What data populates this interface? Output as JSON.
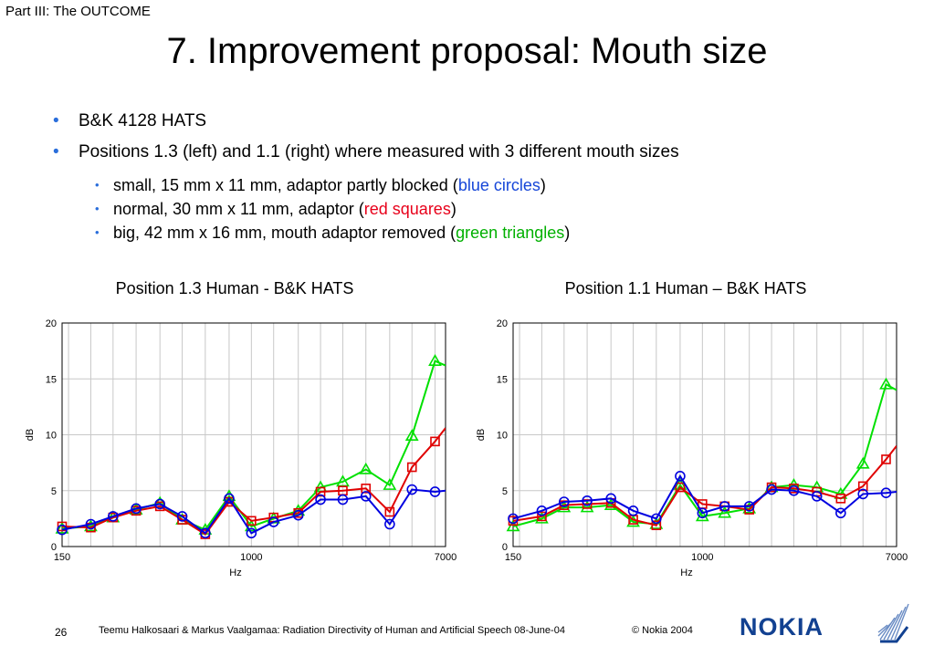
{
  "header": {
    "section": "Part III: The OUTCOME",
    "title": "7. Improvement proposal: Mouth size"
  },
  "bullets": {
    "b1": "B&K 4128 HATS",
    "b2": "Positions 1.3 (left) and 1.1 (right) where measured with 3 different mouth sizes",
    "s1_text": "small, 15 mm x 11 mm, adaptor partly blocked (",
    "s1_colored": "blue circles",
    "s1_end": ")",
    "s2_text": "normal, 30 mm x 11 mm, adaptor (",
    "s2_colored": "red squares",
    "s2_end": ")",
    "s3_text": "big, 42 mm x 16 mm, mouth adaptor removed (",
    "s3_colored": "green triangles",
    "s3_end": ")"
  },
  "colors": {
    "blue": "#0000e0",
    "red": "#e00000",
    "green": "#00e000",
    "bullet": "#2a6edb",
    "logo": "#124191"
  },
  "chart_data": [
    {
      "type": "line",
      "title": "Position 1.3 Human - B&K HATS",
      "xlabel": "Hz",
      "ylabel": "dB",
      "x_scale": "log",
      "xlim": [
        150,
        7000
      ],
      "ylim": [
        0,
        20
      ],
      "xticks": [
        150,
        1000,
        7000
      ],
      "yticks": [
        0,
        5,
        10,
        15,
        20
      ],
      "grid_x": [
        160,
        200,
        250,
        315,
        400,
        500,
        630,
        800,
        1000,
        1250,
        1600,
        2000,
        2500,
        3150,
        4000,
        5000,
        6300
      ],
      "x": [
        150,
        200,
        250,
        315,
        400,
        500,
        630,
        800,
        1000,
        1250,
        1600,
        2000,
        2500,
        3150,
        4000,
        5000,
        6300,
        7000
      ],
      "series": [
        {
          "color": "#00e000",
          "marker": "triangle",
          "values": [
            1.6,
            1.8,
            2.6,
            3.3,
            3.9,
            2.4,
            1.5,
            4.5,
            1.8,
            2.5,
            3.2,
            5.3,
            5.8,
            6.9,
            5.5,
            9.9,
            16.6,
            16.2
          ]
        },
        {
          "color": "#e00000",
          "marker": "square",
          "values": [
            1.8,
            1.7,
            2.6,
            3.2,
            3.6,
            2.4,
            1.1,
            4.0,
            2.3,
            2.6,
            3.0,
            4.9,
            5.0,
            5.2,
            3.1,
            7.1,
            9.4,
            10.6
          ]
        },
        {
          "color": "#0000e0",
          "marker": "circle",
          "values": [
            1.5,
            2.0,
            2.7,
            3.4,
            3.8,
            2.7,
            1.2,
            4.3,
            1.2,
            2.2,
            2.8,
            4.2,
            4.2,
            4.5,
            2.0,
            5.1,
            4.9,
            5.0
          ]
        }
      ]
    },
    {
      "type": "line",
      "title": "Position 1.1 Human – B&K HATS",
      "xlabel": "Hz",
      "ylabel": "dB",
      "x_scale": "log",
      "xlim": [
        150,
        7000
      ],
      "ylim": [
        0,
        20
      ],
      "xticks": [
        150,
        1000,
        7000
      ],
      "yticks": [
        0,
        5,
        10,
        15,
        20
      ],
      "grid_x": [
        160,
        200,
        250,
        315,
        400,
        500,
        630,
        800,
        1000,
        1250,
        1600,
        2000,
        2500,
        3150,
        4000,
        5000,
        6300
      ],
      "x": [
        150,
        200,
        250,
        315,
        400,
        500,
        630,
        800,
        1000,
        1250,
        1600,
        2000,
        2500,
        3150,
        4000,
        5000,
        6300,
        7000
      ],
      "series": [
        {
          "color": "#00e000",
          "marker": "triangle",
          "values": [
            1.8,
            2.5,
            3.5,
            3.5,
            3.7,
            2.2,
            2.0,
            5.5,
            2.7,
            3.0,
            3.4,
            5.3,
            5.5,
            5.3,
            4.7,
            7.4,
            14.5,
            14.0
          ]
        },
        {
          "color": "#e00000",
          "marker": "square",
          "values": [
            2.3,
            2.7,
            3.7,
            3.8,
            3.9,
            2.4,
            1.9,
            5.3,
            3.8,
            3.6,
            3.3,
            5.3,
            5.2,
            4.9,
            4.3,
            5.4,
            7.8,
            9.0
          ]
        },
        {
          "color": "#0000e0",
          "marker": "circle",
          "values": [
            2.5,
            3.2,
            4.0,
            4.1,
            4.3,
            3.2,
            2.5,
            6.3,
            3.0,
            3.6,
            3.6,
            5.1,
            5.0,
            4.5,
            3.0,
            4.7,
            4.8,
            4.9
          ]
        }
      ]
    }
  ],
  "footer": {
    "page": "26",
    "text": "Teemu Halkosaari & Markus Vaalgamaa: Radiation Directivity of Human and Artificial Speech  08-June-04",
    "copyright": "© Nokia 2004",
    "logo": "NOKIA",
    "logo_mark": "connecting-hands-logo"
  }
}
